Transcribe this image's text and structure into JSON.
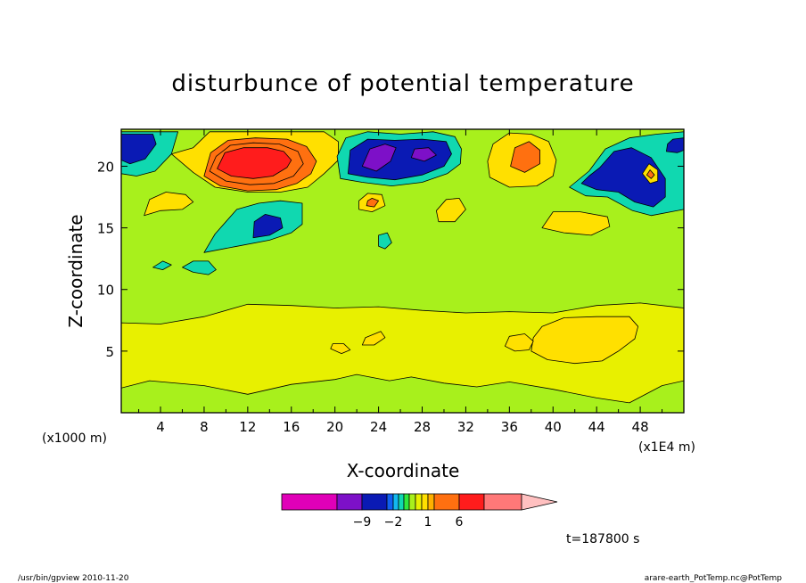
{
  "chart_data": {
    "type": "heatmap",
    "title": "disturbunce of potential temperature",
    "xlabel": "X-coordinate",
    "ylabel": "Z-coordinate",
    "x_unit": "(x1E4 m)",
    "y_unit": "(x1000 m)",
    "xlim": [
      0.4,
      52
    ],
    "ylim": [
      0,
      23
    ],
    "x_ticks": [
      4,
      8,
      12,
      16,
      20,
      24,
      28,
      32,
      36,
      40,
      44,
      48
    ],
    "y_ticks": [
      5,
      10,
      15,
      20
    ],
    "colorbar": {
      "levels": [
        -12,
        -9,
        -6,
        -2,
        -1.5,
        -1,
        -0.5,
        0,
        0.5,
        1,
        1.5,
        2,
        6,
        10,
        14
      ],
      "colors": [
        "#e000b8",
        "#7d10c8",
        "#0a1ab4",
        "#1060f0",
        "#12b8f0",
        "#10d8b0",
        "#2fe83c",
        "#a8f01c",
        "#e8f000",
        "#ffe000",
        "#ffb000",
        "#ff7010",
        "#ff1c1c",
        "#ff7878",
        "#ffc0c0"
      ],
      "tick_labels": [
        "-9",
        "-2",
        "1",
        "6"
      ]
    },
    "regions": [
      {
        "value": 0.2,
        "poly": [
          [
            0.4,
            0
          ],
          [
            52,
            0
          ],
          [
            52,
            23
          ],
          [
            0.4,
            23
          ]
        ]
      },
      {
        "value": 0.7,
        "poly": [
          [
            0.4,
            2
          ],
          [
            3,
            2.6
          ],
          [
            8,
            2.2
          ],
          [
            12,
            1.5
          ],
          [
            16,
            2.3
          ],
          [
            20,
            2.7
          ],
          [
            22,
            3.1
          ],
          [
            25,
            2.6
          ],
          [
            27,
            2.9
          ],
          [
            30,
            2.4
          ],
          [
            33,
            2.1
          ],
          [
            36,
            2.5
          ],
          [
            40,
            1.9
          ],
          [
            44,
            1.2
          ],
          [
            47,
            0.8
          ],
          [
            50,
            2.2
          ],
          [
            52,
            2.6
          ],
          [
            52,
            8.5
          ],
          [
            48,
            8.9
          ],
          [
            44,
            8.7
          ],
          [
            40,
            8.1
          ],
          [
            36,
            8.2
          ],
          [
            32,
            8.1
          ],
          [
            28,
            8.3
          ],
          [
            24,
            8.6
          ],
          [
            20,
            8.5
          ],
          [
            16,
            8.7
          ],
          [
            12,
            8.8
          ],
          [
            8,
            7.8
          ],
          [
            4,
            7.2
          ],
          [
            0.4,
            7.3
          ]
        ]
      },
      {
        "value": 1.3,
        "poly": [
          [
            38,
            5
          ],
          [
            39.5,
            4.3
          ],
          [
            42,
            4
          ],
          [
            44.5,
            4.2
          ],
          [
            46,
            5
          ],
          [
            47.5,
            6
          ],
          [
            47.8,
            7
          ],
          [
            47,
            7.8
          ],
          [
            44,
            7.8
          ],
          [
            41,
            7.7
          ],
          [
            39,
            7
          ],
          [
            38.2,
            6.1
          ]
        ]
      },
      {
        "value": 1.3,
        "poly": [
          [
            35.6,
            5.4
          ],
          [
            36.5,
            5
          ],
          [
            37.8,
            5.1
          ],
          [
            38.2,
            5.8
          ],
          [
            37.4,
            6.4
          ],
          [
            36,
            6.2
          ]
        ]
      },
      {
        "value": 1.3,
        "poly": [
          [
            19.6,
            5.2
          ],
          [
            20.6,
            4.8
          ],
          [
            21.4,
            5.1
          ],
          [
            20.8,
            5.6
          ],
          [
            19.8,
            5.6
          ]
        ]
      },
      {
        "value": 1.3,
        "poly": [
          [
            22.5,
            5.5
          ],
          [
            23.6,
            5.5
          ],
          [
            24.6,
            6.1
          ],
          [
            24.2,
            6.6
          ],
          [
            22.8,
            6.1
          ]
        ]
      },
      {
        "value": -0.7,
        "poly": [
          [
            8,
            13
          ],
          [
            11,
            13.5
          ],
          [
            14,
            14
          ],
          [
            16,
            14.6
          ],
          [
            17,
            15.3
          ],
          [
            17,
            17
          ],
          [
            15,
            17.2
          ],
          [
            13,
            17
          ],
          [
            11,
            16.5
          ],
          [
            10,
            15.5
          ],
          [
            9,
            14.5
          ]
        ]
      },
      {
        "value": -0.7,
        "poly": [
          [
            3.3,
            11.8
          ],
          [
            4.2,
            11.6
          ],
          [
            5,
            12
          ],
          [
            4.2,
            12.3
          ]
        ]
      },
      {
        "value": -0.7,
        "poly": [
          [
            6,
            11.8
          ],
          [
            7,
            11.4
          ],
          [
            8.4,
            11.2
          ],
          [
            9.1,
            11.6
          ],
          [
            8.4,
            12.3
          ],
          [
            7,
            12.3
          ]
        ]
      },
      {
        "value": -0.7,
        "poly": [
          [
            24,
            13.5
          ],
          [
            24.6,
            13.3
          ],
          [
            25.2,
            13.8
          ],
          [
            24.8,
            14.6
          ],
          [
            24,
            14.4
          ]
        ]
      },
      {
        "value": -3,
        "poly": [
          [
            12.5,
            14.2
          ],
          [
            14,
            14.4
          ],
          [
            15.2,
            15
          ],
          [
            15,
            15.8
          ],
          [
            13.6,
            16.1
          ],
          [
            12.6,
            15.5
          ]
        ]
      },
      {
        "value": 1.3,
        "poly": [
          [
            2.5,
            16
          ],
          [
            4,
            16.4
          ],
          [
            6,
            16.5
          ],
          [
            7,
            17.1
          ],
          [
            6.3,
            17.7
          ],
          [
            4.5,
            17.9
          ],
          [
            3,
            17.3
          ]
        ]
      },
      {
        "value": 1.3,
        "poly": [
          [
            29.5,
            15.5
          ],
          [
            31,
            15.5
          ],
          [
            32,
            16.5
          ],
          [
            31.4,
            17.4
          ],
          [
            30.2,
            17.3
          ],
          [
            29.3,
            16.4
          ]
        ]
      },
      {
        "value": 1.3,
        "poly": [
          [
            39,
            15
          ],
          [
            41,
            14.6
          ],
          [
            43.5,
            14.4
          ],
          [
            45.2,
            15.1
          ],
          [
            45,
            15.9
          ],
          [
            42.5,
            16.3
          ],
          [
            40,
            16.3
          ]
        ]
      },
      {
        "value": 1.3,
        "poly": [
          [
            5,
            21
          ],
          [
            7,
            21.5
          ],
          [
            8.5,
            22.8
          ],
          [
            12,
            22.8
          ],
          [
            16,
            22.8
          ],
          [
            19,
            22.8
          ],
          [
            20.3,
            22
          ],
          [
            20.3,
            20.5
          ],
          [
            19,
            19.4
          ],
          [
            17.5,
            18.3
          ],
          [
            15,
            17.9
          ],
          [
            12,
            17.9
          ],
          [
            9,
            18.3
          ],
          [
            7,
            19.5
          ]
        ]
      },
      {
        "value": 2.5,
        "poly": [
          [
            8,
            19.2
          ],
          [
            9.5,
            18.4
          ],
          [
            12,
            18
          ],
          [
            14.6,
            18.1
          ],
          [
            16.5,
            18.6
          ],
          [
            17.8,
            19.4
          ],
          [
            18.3,
            20.4
          ],
          [
            17.4,
            21.6
          ],
          [
            15.6,
            22.2
          ],
          [
            12.7,
            22.3
          ],
          [
            10.2,
            22.1
          ],
          [
            8.6,
            21.1
          ]
        ]
      },
      {
        "value": 4,
        "poly": [
          [
            8.5,
            19.6
          ],
          [
            10,
            18.8
          ],
          [
            12.2,
            18.5
          ],
          [
            14.4,
            18.6
          ],
          [
            16.2,
            19.2
          ],
          [
            17.1,
            20.2
          ],
          [
            16.6,
            21.2
          ],
          [
            14.9,
            21.8
          ],
          [
            12.5,
            21.9
          ],
          [
            10.4,
            21.7
          ],
          [
            9.1,
            20.8
          ]
        ]
      },
      {
        "value": 8,
        "poly": [
          [
            9.2,
            19.8
          ],
          [
            10.5,
            19.2
          ],
          [
            12.5,
            19
          ],
          [
            14.3,
            19.2
          ],
          [
            15.6,
            19.9
          ],
          [
            16,
            20.5
          ],
          [
            15.3,
            21.2
          ],
          [
            13.8,
            21.5
          ],
          [
            11.6,
            21.5
          ],
          [
            9.9,
            21.1
          ]
        ]
      },
      {
        "value": -0.7,
        "poly": [
          [
            20.5,
            19
          ],
          [
            22.5,
            18.7
          ],
          [
            25.2,
            18.4
          ],
          [
            28,
            18.7
          ],
          [
            30.3,
            19.4
          ],
          [
            31.5,
            20.2
          ],
          [
            31.6,
            21.4
          ],
          [
            31,
            22.4
          ],
          [
            29,
            22.8
          ],
          [
            26,
            22.6
          ],
          [
            23,
            22.8
          ],
          [
            21,
            22.3
          ],
          [
            20.2,
            20.8
          ]
        ]
      },
      {
        "value": -3,
        "poly": [
          [
            21.2,
            19.4
          ],
          [
            23,
            19.1
          ],
          [
            25.5,
            18.9
          ],
          [
            28,
            19.3
          ],
          [
            30,
            20
          ],
          [
            30.7,
            21
          ],
          [
            30.2,
            22
          ],
          [
            28,
            22.2
          ],
          [
            25.5,
            22.1
          ],
          [
            23,
            22.2
          ],
          [
            21.4,
            21.3
          ]
        ]
      },
      {
        "value": -7,
        "poly": [
          [
            22.5,
            20
          ],
          [
            23.8,
            19.6
          ],
          [
            25.1,
            20.4
          ],
          [
            25.6,
            21.5
          ],
          [
            24.6,
            21.8
          ],
          [
            23.2,
            21.4
          ]
        ]
      },
      {
        "value": -7,
        "poly": [
          [
            27,
            20.7
          ],
          [
            28.2,
            20.4
          ],
          [
            29.3,
            20.9
          ],
          [
            28.6,
            21.5
          ],
          [
            27.3,
            21.4
          ]
        ]
      },
      {
        "value": 1.3,
        "poly": [
          [
            22.2,
            16.5
          ],
          [
            23.4,
            16.3
          ],
          [
            24.6,
            16.8
          ],
          [
            24.3,
            17.7
          ],
          [
            23,
            17.8
          ],
          [
            22.2,
            17.2
          ]
        ]
      },
      {
        "value": 2.5,
        "poly": [
          [
            22.9,
            16.8
          ],
          [
            23.6,
            16.7
          ],
          [
            24,
            17.2
          ],
          [
            23.4,
            17.4
          ],
          [
            23,
            17.2
          ]
        ]
      },
      {
        "value": 1.3,
        "poly": [
          [
            34.2,
            19.1
          ],
          [
            36,
            18.3
          ],
          [
            38.5,
            18.4
          ],
          [
            40,
            19.2
          ],
          [
            40.3,
            20.5
          ],
          [
            39.6,
            22
          ],
          [
            38,
            22.6
          ],
          [
            36,
            22.7
          ],
          [
            34.5,
            21.8
          ],
          [
            34,
            20.4
          ]
        ]
      },
      {
        "value": 2.5,
        "poly": [
          [
            36.1,
            20
          ],
          [
            37.4,
            19.5
          ],
          [
            38.8,
            20.2
          ],
          [
            38.8,
            21.3
          ],
          [
            37.8,
            22
          ],
          [
            36.5,
            21.5
          ]
        ]
      },
      {
        "value": -0.7,
        "poly": [
          [
            41.5,
            18.3
          ],
          [
            43,
            17.6
          ],
          [
            45,
            17.5
          ],
          [
            47.3,
            16.4
          ],
          [
            49,
            16
          ],
          [
            52,
            16.5
          ],
          [
            52,
            22.8
          ],
          [
            49.5,
            22.6
          ],
          [
            47,
            22.3
          ],
          [
            44.8,
            21.4
          ],
          [
            43.3,
            19.6
          ]
        ]
      },
      {
        "value": -3,
        "poly": [
          [
            42.6,
            18.6
          ],
          [
            44,
            18.1
          ],
          [
            46,
            17.9
          ],
          [
            47.5,
            17.1
          ],
          [
            49.2,
            16.7
          ],
          [
            50.3,
            17.5
          ],
          [
            50.3,
            19
          ],
          [
            49,
            20.7
          ],
          [
            47.2,
            21.5
          ],
          [
            45.6,
            21.2
          ],
          [
            44.3,
            19.9
          ],
          [
            43.3,
            19.2
          ]
        ]
      },
      {
        "value": 1.3,
        "poly": [
          [
            48.2,
            19.4
          ],
          [
            48.9,
            18.6
          ],
          [
            49.6,
            18.8
          ],
          [
            49.6,
            19.7
          ],
          [
            48.8,
            20.2
          ]
        ]
      },
      {
        "value": 2.5,
        "poly": [
          [
            48.6,
            19.3
          ],
          [
            49,
            19
          ],
          [
            49.3,
            19.3
          ],
          [
            48.9,
            19.7
          ]
        ]
      },
      {
        "value": -3,
        "poly": [
          [
            50.4,
            21.2
          ],
          [
            51.4,
            21.1
          ],
          [
            52,
            21.3
          ],
          [
            52,
            22.3
          ],
          [
            51,
            22.2
          ],
          [
            50.5,
            21.8
          ]
        ]
      },
      {
        "value": -0.7,
        "poly": [
          [
            0.4,
            19.4
          ],
          [
            1.8,
            19.2
          ],
          [
            3.5,
            19.6
          ],
          [
            5,
            21
          ],
          [
            5.6,
            22.8
          ],
          [
            0.4,
            22.8
          ]
        ]
      },
      {
        "value": -3,
        "poly": [
          [
            0.4,
            20.5
          ],
          [
            1.2,
            20.2
          ],
          [
            2.6,
            20.6
          ],
          [
            3.6,
            21.8
          ],
          [
            3.3,
            22.6
          ],
          [
            0.4,
            22.6
          ]
        ]
      }
    ],
    "time_label": "t=187800 s"
  },
  "footer": {
    "left": "/usr/bin/gpview  2010-11-20",
    "right": "arare-earth_PotTemp.nc@PotTemp"
  }
}
